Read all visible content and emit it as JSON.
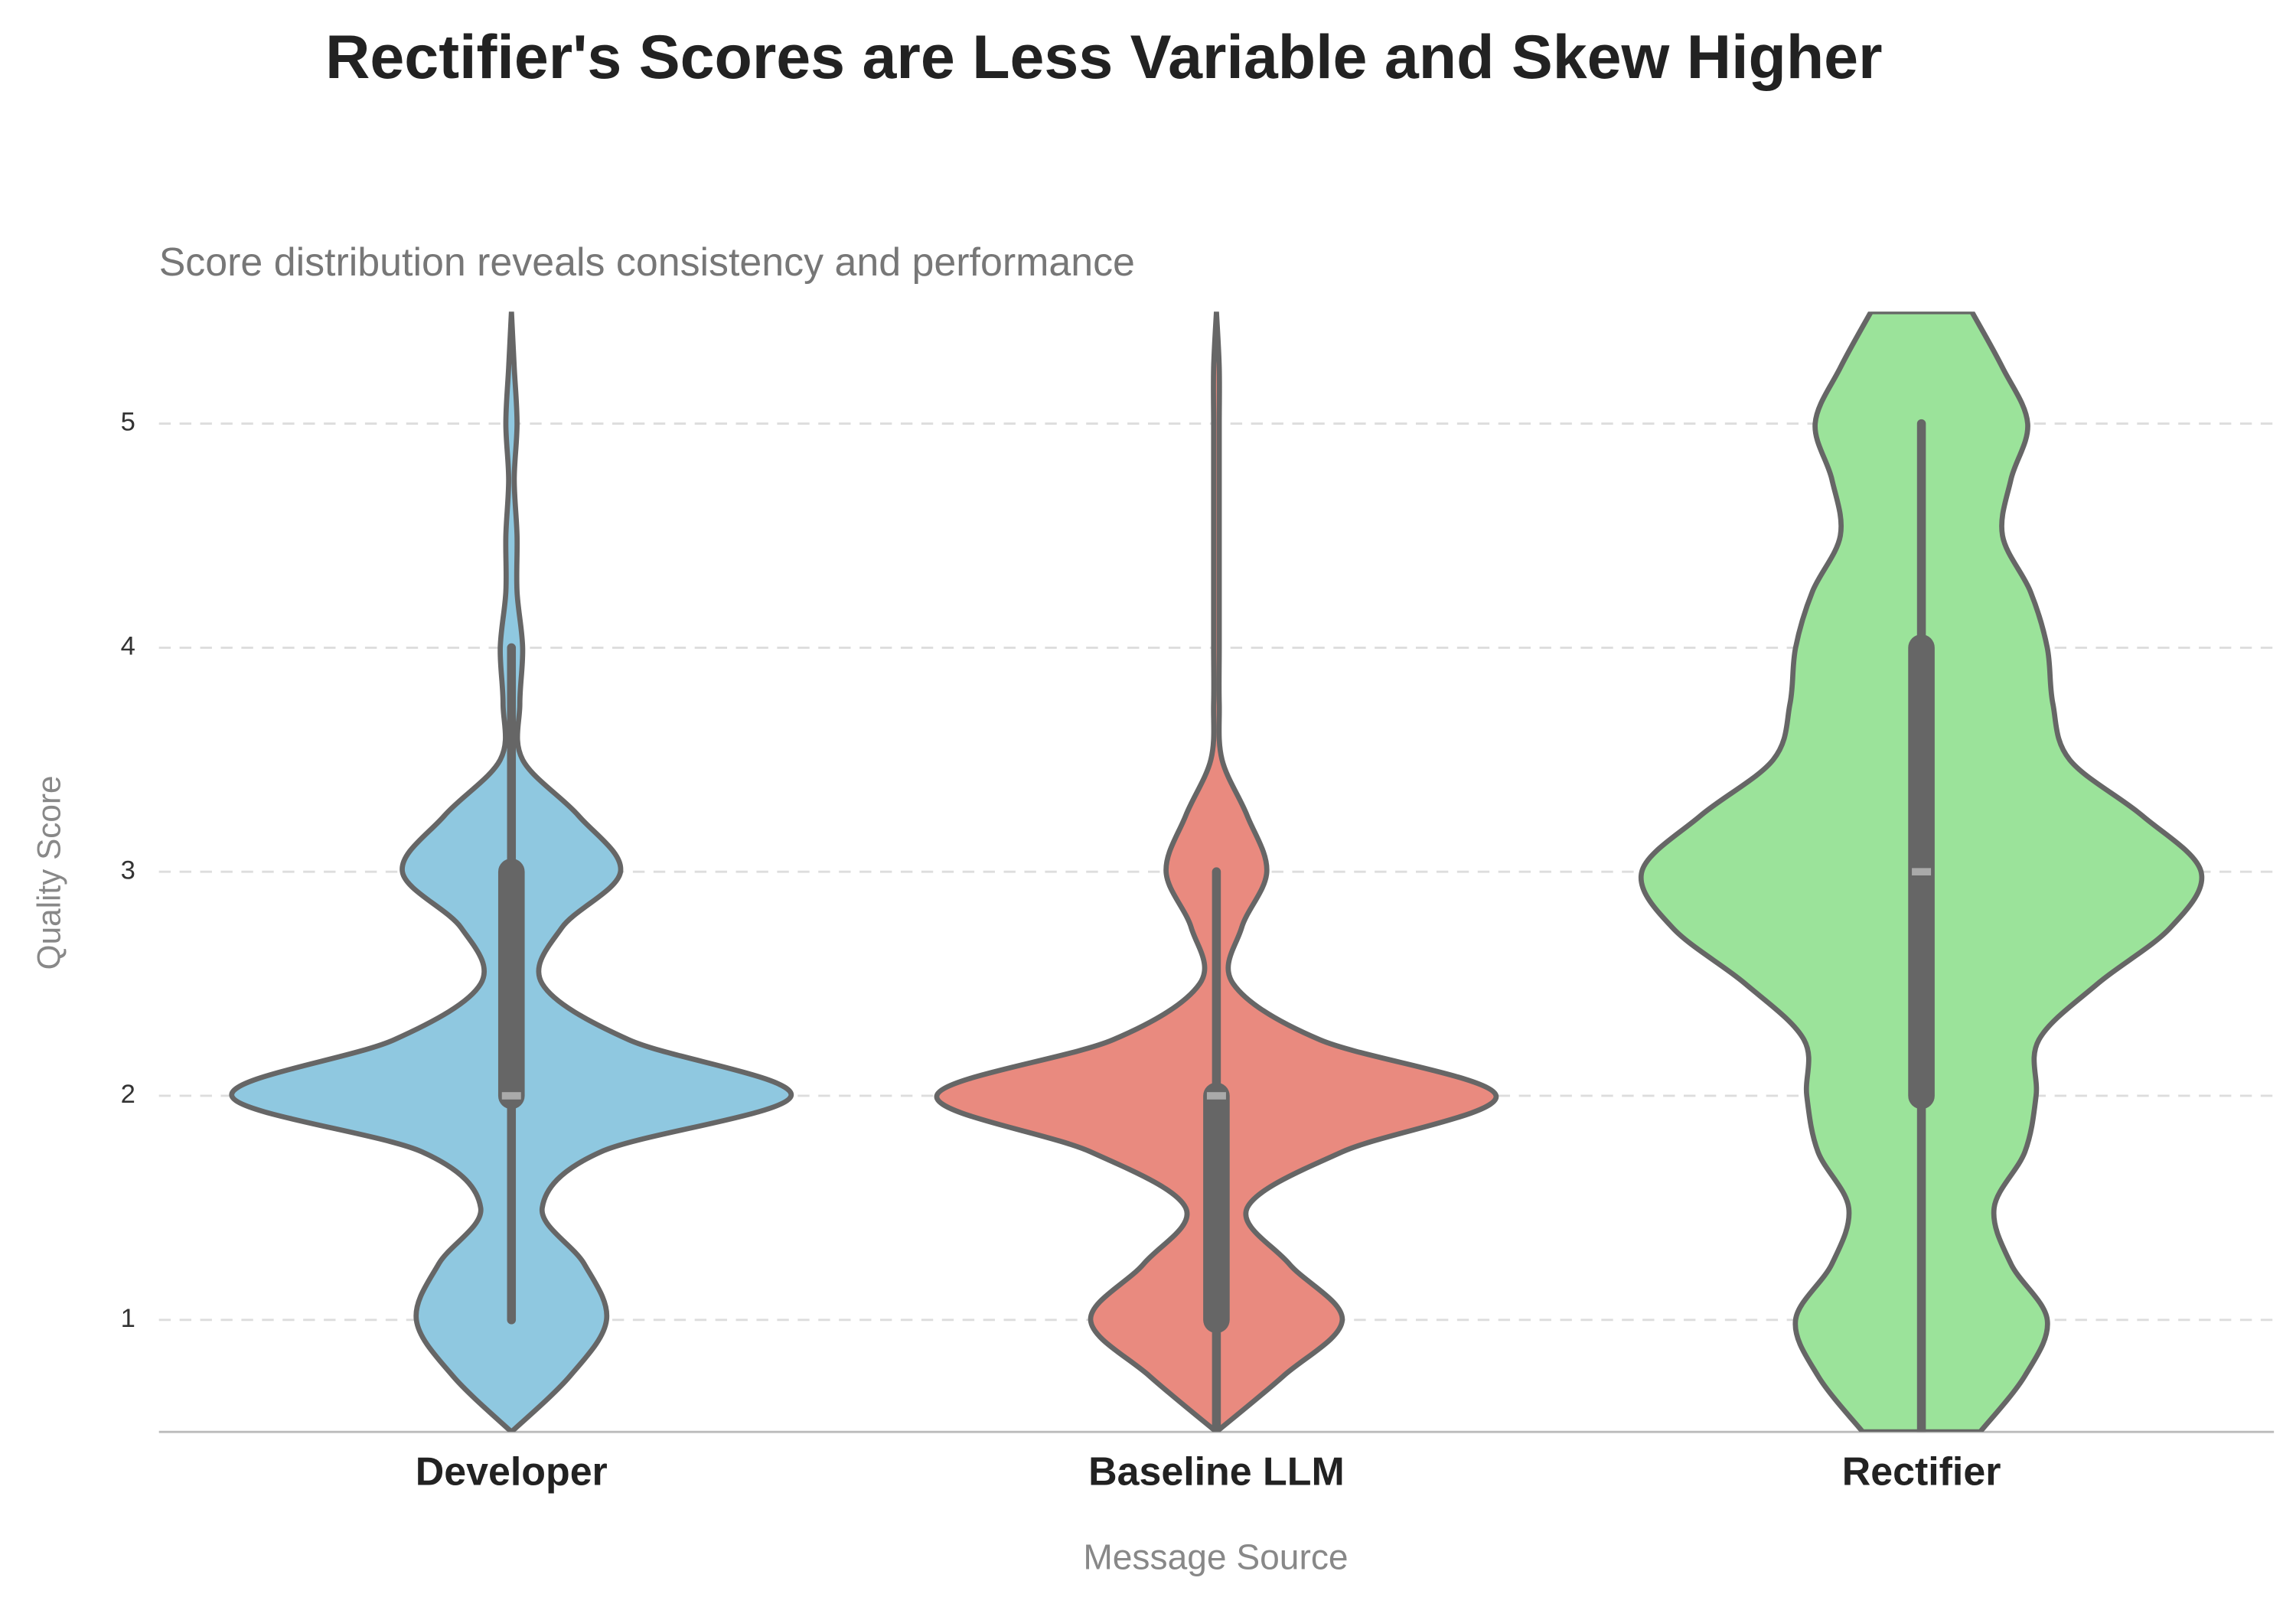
{
  "chart_data": {
    "type": "violin",
    "title": "Rectifier's Scores are Less Variable and Skew Higher",
    "subtitle": "Score distribution reveals consistency and performance",
    "xlabel": "Message Source",
    "ylabel": "Quality Score",
    "categories": [
      "Developer",
      "Baseline LLM",
      "Rectifier"
    ],
    "colors": [
      "#8fc8e0",
      "#e98a7f",
      "#9be39a"
    ],
    "y_grid": [
      0.5,
      0.75,
      1,
      1.25,
      1.5,
      1.75,
      2,
      2.25,
      2.5,
      2.75,
      3,
      3.25,
      3.5,
      3.75,
      4,
      4.25,
      4.5,
      4.75,
      5,
      5.25,
      5.5
    ],
    "density": [
      [
        0,
        0.21,
        0.34,
        0.26,
        0.11,
        0.32,
        1,
        0.42,
        0.11,
        0.18,
        0.39,
        0.24,
        0.04,
        0.03,
        0.04,
        0.02,
        0.02,
        0.01,
        0.02,
        0.01,
        0
      ],
      [
        0,
        0.24,
        0.45,
        0.26,
        0.11,
        0.45,
        1,
        0.37,
        0.06,
        0.09,
        0.18,
        0.11,
        0.02,
        0.01,
        0.01,
        0.01,
        0.01,
        0.01,
        0.01,
        0.01,
        0
      ],
      [
        0.21,
        0.37,
        0.45,
        0.32,
        0.26,
        0.37,
        0.41,
        0.42,
        0.63,
        0.89,
        1,
        0.79,
        0.53,
        0.47,
        0.45,
        0.39,
        0.29,
        0.32,
        0.38,
        0.29,
        0.18
      ]
    ],
    "whisker_low": [
      1,
      0.5,
      0.5
    ],
    "q1": [
      2,
      1,
      2
    ],
    "median": [
      2,
      2,
      3
    ],
    "q3": [
      3,
      2,
      4
    ],
    "whisker_high": [
      4,
      3,
      5
    ],
    "ylim": [
      0.5,
      5.5
    ],
    "yticks": [
      1,
      2,
      3,
      4,
      5
    ],
    "grid": true
  }
}
